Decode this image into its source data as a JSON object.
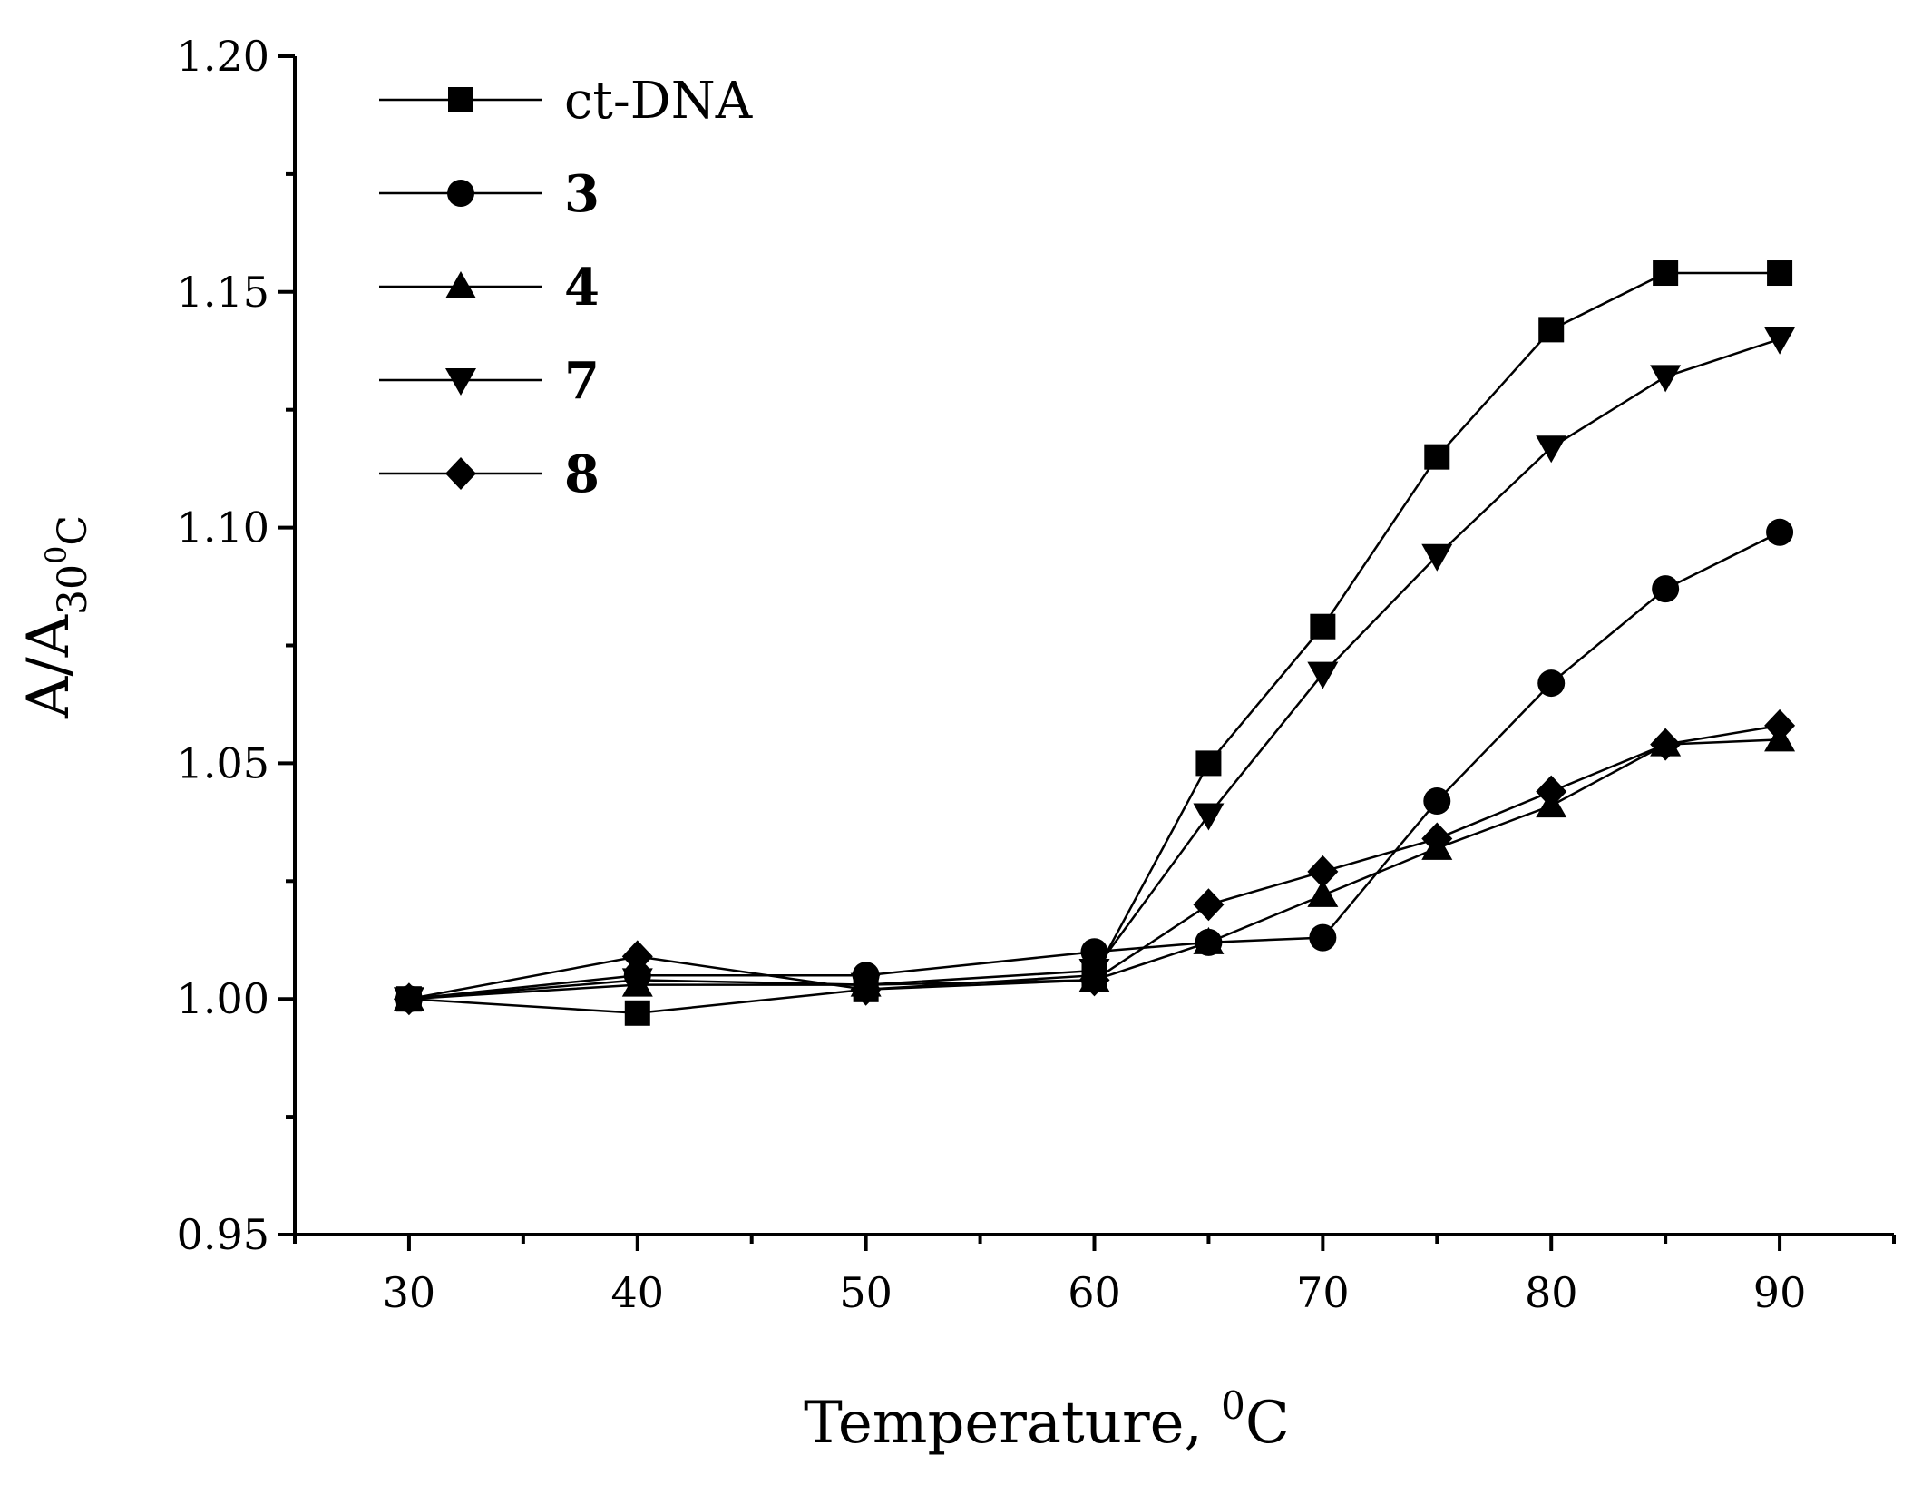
{
  "chart_data": {
    "type": "line",
    "title": "",
    "xlabel": "Temperature, ",
    "xlabel_sup": "0",
    "xlabel_unit": "C",
    "ylabel_main": "A/A",
    "ylabel_sub": "30",
    "ylabel_subsup": "0",
    "ylabel_subunit": "C",
    "xlim": [
      25,
      95
    ],
    "ylim": [
      0.95,
      1.2
    ],
    "x_ticks": [
      30,
      40,
      50,
      60,
      70,
      80,
      90
    ],
    "x_tick_labels": [
      "30",
      "40",
      "50",
      "60",
      "70",
      "80",
      "90"
    ],
    "y_ticks": [
      0.95,
      1.0,
      1.05,
      1.1,
      1.15,
      1.2
    ],
    "y_tick_labels": [
      "0.95",
      "1.00",
      "1.05",
      "1.10",
      "1.15",
      "1.20"
    ],
    "legend_position": "top-left",
    "series": [
      {
        "name": "ct-DNA",
        "bold": false,
        "marker": "square",
        "x": [
          30,
          40,
          50,
          60,
          65,
          70,
          75,
          80,
          85,
          90
        ],
        "y": [
          1.0,
          0.997,
          1.002,
          1.005,
          1.05,
          1.079,
          1.115,
          1.142,
          1.154,
          1.154
        ]
      },
      {
        "name": "3",
        "bold": true,
        "marker": "circle",
        "x": [
          30,
          40,
          50,
          60,
          65,
          70,
          75,
          80,
          85,
          90
        ],
        "y": [
          1.0,
          1.005,
          1.005,
          1.01,
          1.012,
          1.013,
          1.042,
          1.067,
          1.087,
          1.099
        ]
      },
      {
        "name": "4",
        "bold": true,
        "marker": "triangle-up",
        "x": [
          30,
          40,
          50,
          60,
          65,
          70,
          75,
          80,
          85,
          90
        ],
        "y": [
          1.0,
          1.003,
          1.003,
          1.004,
          1.012,
          1.022,
          1.032,
          1.041,
          1.054,
          1.055
        ]
      },
      {
        "name": "7",
        "bold": true,
        "marker": "triangle-down",
        "x": [
          30,
          40,
          50,
          60,
          65,
          70,
          75,
          80,
          85,
          90
        ],
        "y": [
          1.0,
          1.004,
          1.003,
          1.006,
          1.039,
          1.069,
          1.094,
          1.117,
          1.132,
          1.14
        ]
      },
      {
        "name": "8",
        "bold": true,
        "marker": "diamond",
        "x": [
          30,
          40,
          50,
          60,
          65,
          70,
          75,
          80,
          85,
          90
        ],
        "y": [
          1.0,
          1.009,
          1.002,
          1.004,
          1.02,
          1.027,
          1.034,
          1.044,
          1.054,
          1.058
        ]
      }
    ]
  }
}
